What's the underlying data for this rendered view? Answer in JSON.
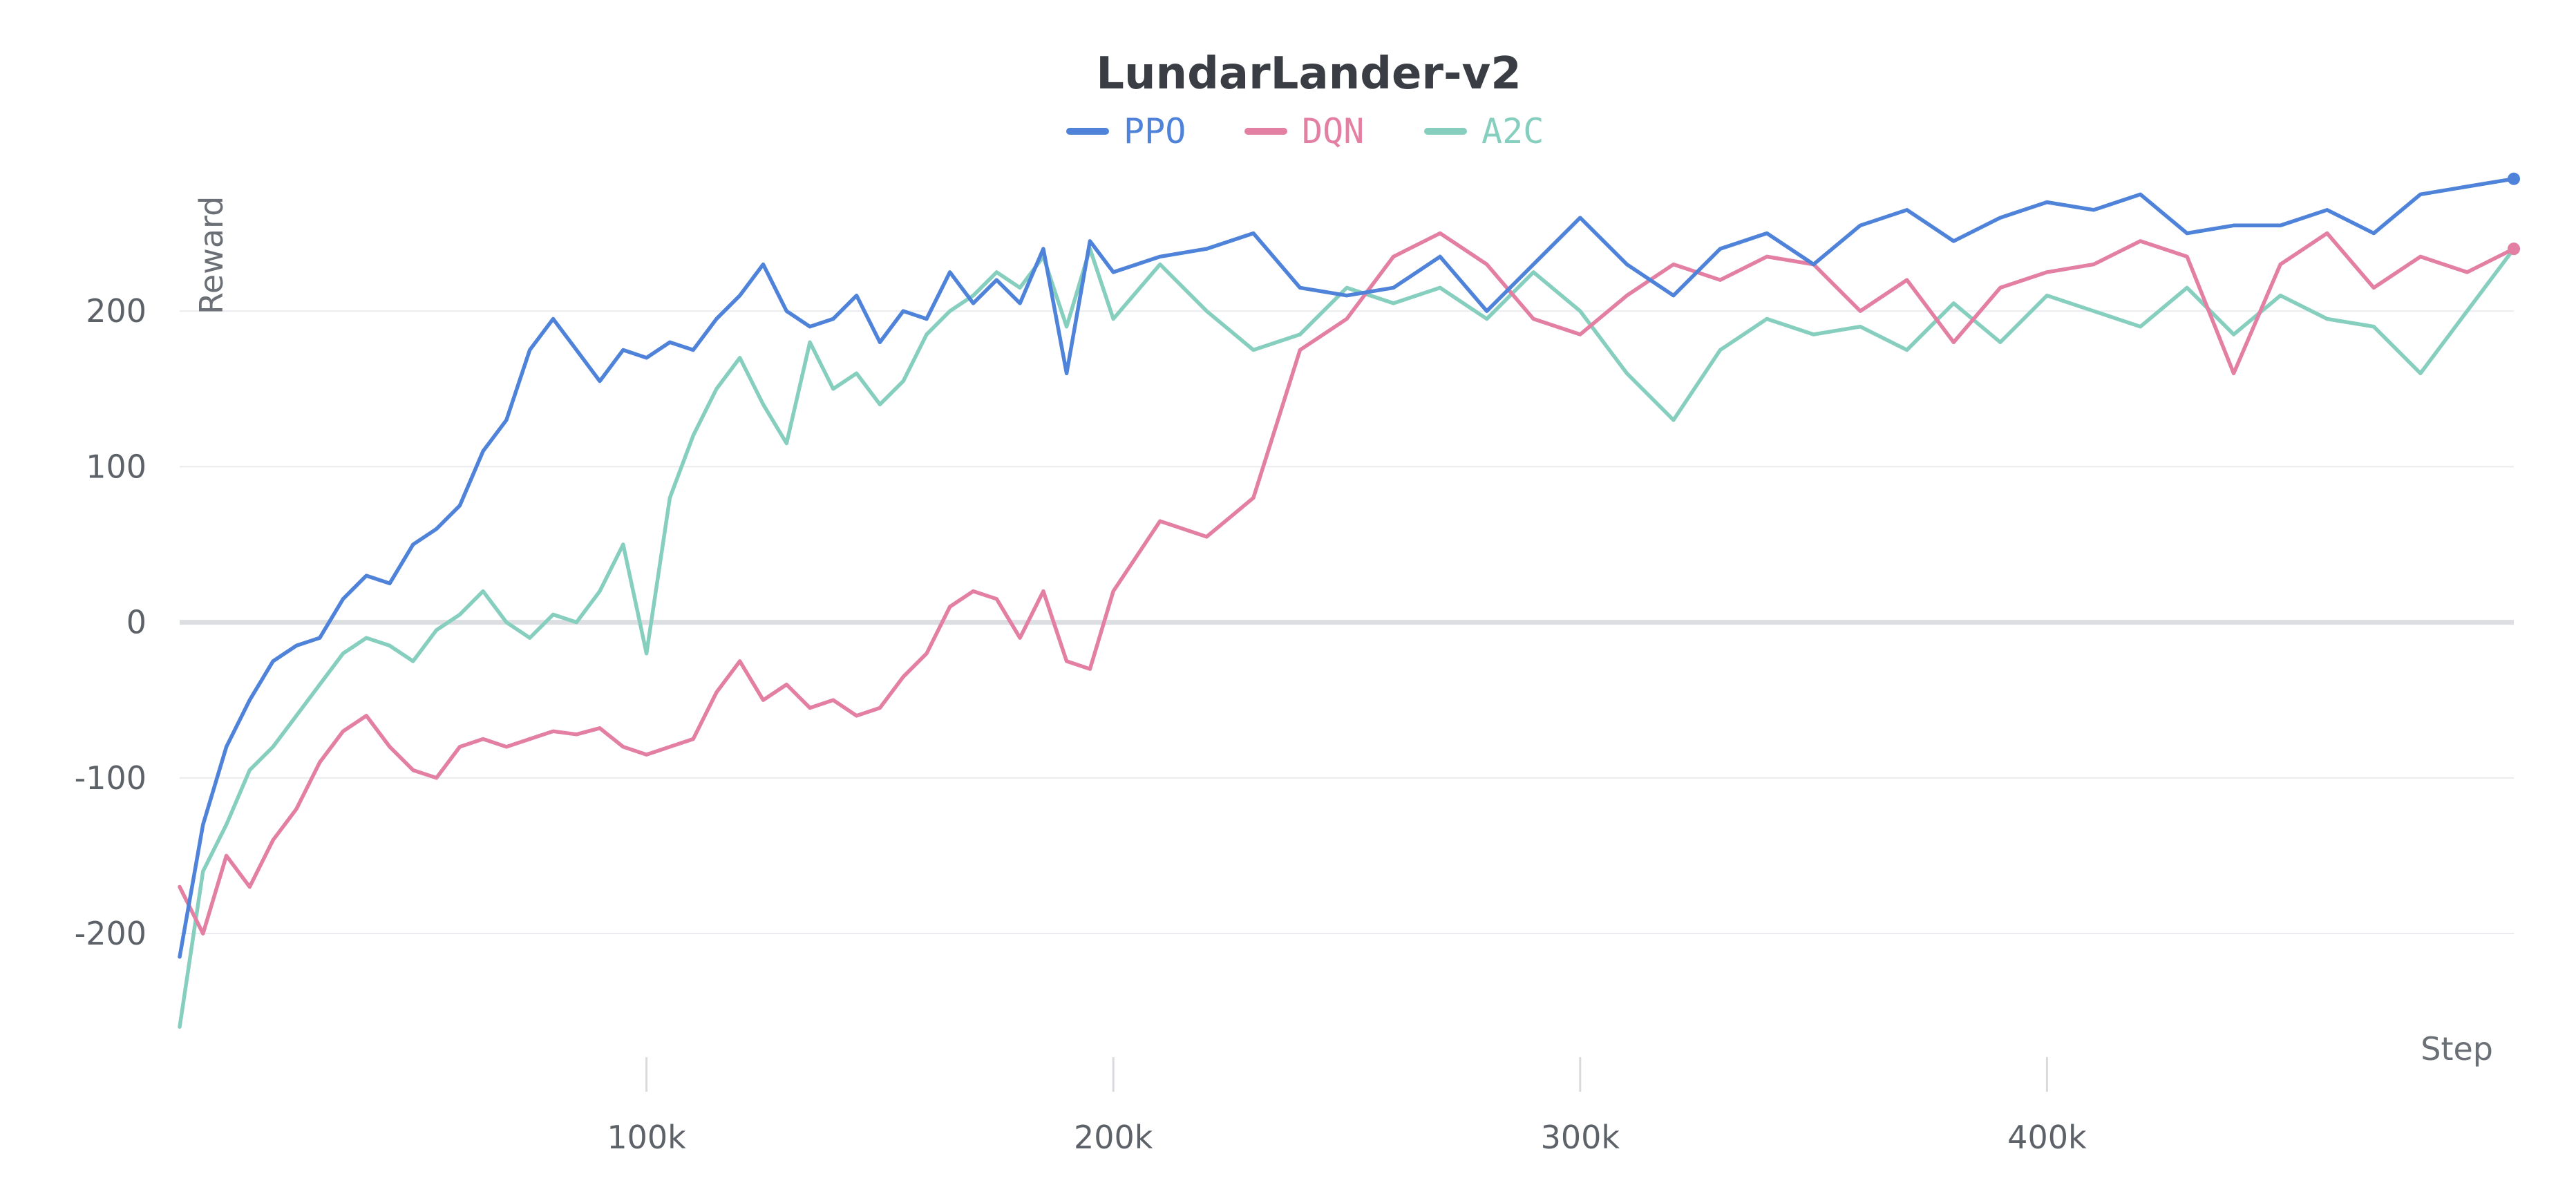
{
  "chart_data": {
    "type": "line",
    "title": "LundarLander-v2",
    "xlabel": "Step",
    "ylabel": "Reward",
    "xlim": [
      0,
      500000
    ],
    "ylim": [
      -295,
      300
    ],
    "xticks": [
      100000,
      200000,
      300000,
      400000
    ],
    "xtick_labels": [
      "100k",
      "200k",
      "300k",
      "400k"
    ],
    "yticks": [
      -200,
      -100,
      0,
      100,
      200
    ],
    "ytick_labels": [
      "-200",
      "-100",
      "0",
      "100",
      "200"
    ],
    "grid": true,
    "legend_position": "top-center",
    "series": [
      {
        "name": "PPO",
        "color": "#4f83d9",
        "x": [
          0,
          5000,
          10000,
          15000,
          20000,
          25000,
          30000,
          35000,
          40000,
          45000,
          50000,
          55000,
          60000,
          65000,
          70000,
          75000,
          80000,
          85000,
          90000,
          95000,
          100000,
          105000,
          110000,
          115000,
          120000,
          125000,
          130000,
          135000,
          140000,
          145000,
          150000,
          155000,
          160000,
          165000,
          170000,
          175000,
          180000,
          185000,
          190000,
          195000,
          200000,
          210000,
          220000,
          230000,
          240000,
          250000,
          260000,
          270000,
          280000,
          290000,
          300000,
          310000,
          320000,
          330000,
          340000,
          350000,
          360000,
          370000,
          380000,
          390000,
          400000,
          410000,
          420000,
          430000,
          440000,
          450000,
          460000,
          470000,
          480000,
          490000,
          500000
        ],
        "values": [
          -215,
          -130,
          -80,
          -50,
          -25,
          -15,
          -10,
          15,
          30,
          25,
          50,
          60,
          75,
          110,
          130,
          175,
          195,
          175,
          155,
          175,
          170,
          180,
          175,
          195,
          210,
          230,
          200,
          190,
          195,
          210,
          180,
          200,
          195,
          225,
          205,
          220,
          205,
          240,
          160,
          245,
          225,
          235,
          240,
          250,
          215,
          210,
          215,
          235,
          200,
          230,
          260,
          230,
          210,
          240,
          250,
          230,
          255,
          265,
          245,
          260,
          270,
          265,
          275,
          250,
          255,
          255,
          265,
          250,
          275,
          280,
          285
        ]
      },
      {
        "name": "DQN",
        "color": "#e37fa3",
        "x": [
          0,
          5000,
          10000,
          15000,
          20000,
          25000,
          30000,
          35000,
          40000,
          45000,
          50000,
          55000,
          60000,
          65000,
          70000,
          75000,
          80000,
          85000,
          90000,
          95000,
          100000,
          105000,
          110000,
          115000,
          120000,
          125000,
          130000,
          135000,
          140000,
          145000,
          150000,
          155000,
          160000,
          165000,
          170000,
          175000,
          180000,
          185000,
          190000,
          195000,
          200000,
          210000,
          220000,
          230000,
          240000,
          250000,
          260000,
          270000,
          280000,
          290000,
          300000,
          310000,
          320000,
          330000,
          340000,
          350000,
          360000,
          370000,
          380000,
          390000,
          400000,
          410000,
          420000,
          430000,
          440000,
          450000,
          460000,
          470000,
          480000,
          490000,
          500000
        ],
        "values": [
          -170,
          -200,
          -150,
          -170,
          -140,
          -120,
          -90,
          -70,
          -60,
          -80,
          -95,
          -100,
          -80,
          -75,
          -80,
          -75,
          -70,
          -72,
          -68,
          -80,
          -85,
          -80,
          -75,
          -45,
          -25,
          -50,
          -40,
          -55,
          -50,
          -60,
          -55,
          -35,
          -20,
          10,
          20,
          15,
          -10,
          20,
          -25,
          -30,
          20,
          65,
          55,
          80,
          175,
          195,
          235,
          250,
          230,
          195,
          185,
          210,
          230,
          220,
          235,
          230,
          200,
          220,
          180,
          215,
          225,
          230,
          245,
          235,
          160,
          230,
          250,
          215,
          235,
          225,
          240
        ]
      },
      {
        "name": "A2C",
        "color": "#86cfbf",
        "x": [
          0,
          5000,
          10000,
          15000,
          20000,
          25000,
          30000,
          35000,
          40000,
          45000,
          50000,
          55000,
          60000,
          65000,
          70000,
          75000,
          80000,
          85000,
          90000,
          95000,
          100000,
          105000,
          110000,
          115000,
          120000,
          125000,
          130000,
          135000,
          140000,
          145000,
          150000,
          155000,
          160000,
          165000,
          170000,
          175000,
          180000,
          185000,
          190000,
          195000,
          200000,
          210000,
          220000,
          230000,
          240000,
          250000,
          260000,
          270000,
          280000,
          290000,
          300000,
          310000,
          320000,
          330000,
          340000,
          350000,
          360000,
          370000,
          380000,
          390000,
          400000,
          410000,
          420000,
          430000,
          440000,
          450000,
          460000,
          470000,
          480000,
          490000,
          500000
        ],
        "values": [
          -260,
          -160,
          -130,
          -95,
          -80,
          -60,
          -40,
          -20,
          -10,
          -15,
          -25,
          -5,
          5,
          20,
          0,
          -10,
          5,
          0,
          20,
          50,
          -20,
          80,
          120,
          150,
          170,
          140,
          115,
          180,
          150,
          160,
          140,
          155,
          185,
          200,
          210,
          225,
          215,
          235,
          190,
          240,
          195,
          230,
          200,
          175,
          185,
          215,
          205,
          215,
          195,
          225,
          200,
          160,
          130,
          175,
          195,
          185,
          190,
          175,
          205,
          180,
          210,
          200,
          190,
          215,
          185,
          210,
          195,
          190,
          160,
          200,
          240
        ]
      }
    ]
  }
}
